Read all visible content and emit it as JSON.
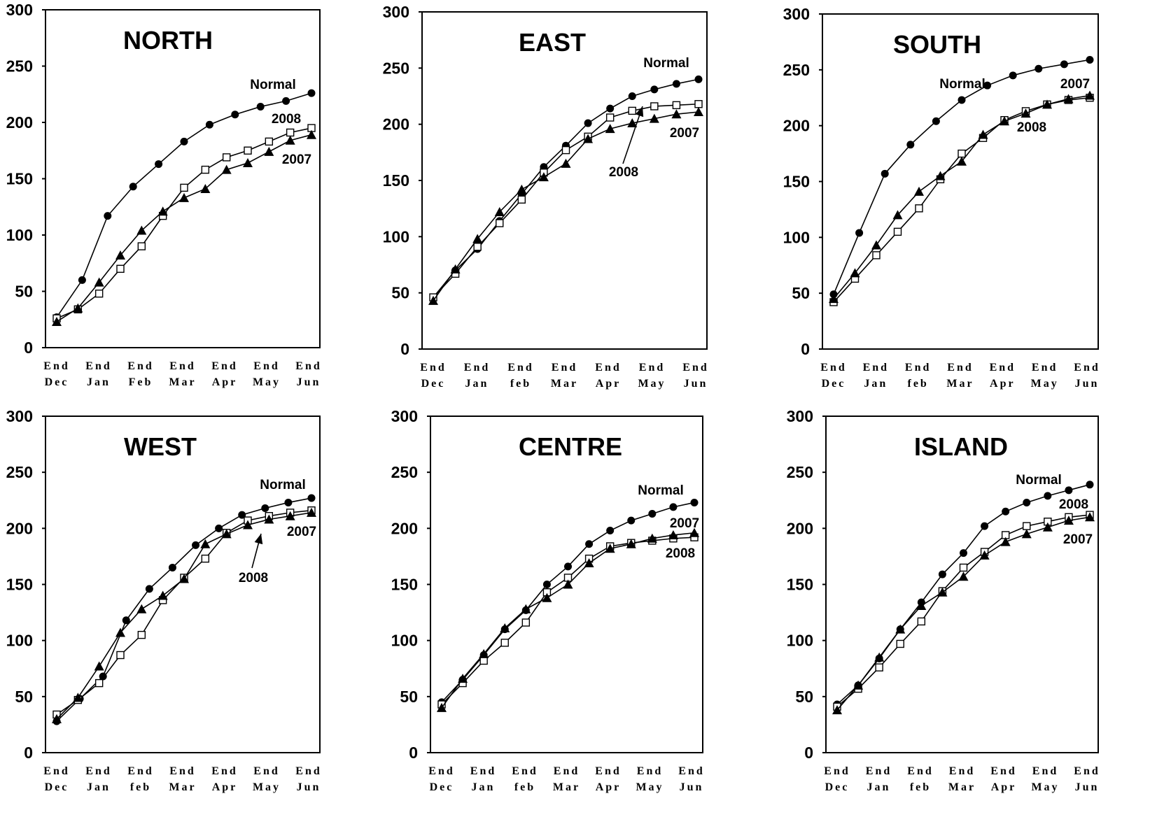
{
  "chart_data": [
    {
      "type": "line",
      "title": "NORTH",
      "x_labels": [
        [
          "End",
          "Dec"
        ],
        [
          "End",
          "Jan"
        ],
        [
          "End",
          "Feb"
        ],
        [
          "End",
          "Mar"
        ],
        [
          "End",
          "Apr"
        ],
        [
          "End",
          "May"
        ],
        [
          "End",
          "Jun"
        ]
      ],
      "ylim": [
        0,
        300
      ],
      "yticks": [
        0,
        50,
        100,
        150,
        200,
        250,
        300
      ],
      "series": [
        {
          "name": "Normal",
          "marker": "circle",
          "values": [
            27,
            60,
            117,
            143,
            163,
            183,
            198,
            207,
            214,
            219,
            226
          ]
        },
        {
          "name": "2008",
          "marker": "square",
          "values": [
            26,
            34,
            48,
            70,
            90,
            117,
            142,
            158,
            169,
            175,
            183,
            191,
            195
          ]
        },
        {
          "name": "2007",
          "marker": "triangle",
          "values": [
            23,
            35,
            58,
            82,
            104,
            121,
            133,
            141,
            158,
            164,
            174,
            184,
            189
          ]
        }
      ],
      "annotations": [
        {
          "text": "Normal",
          "arrow": false
        },
        {
          "text": "2008",
          "arrow": false
        },
        {
          "text": "2007",
          "arrow": false
        }
      ]
    },
    {
      "type": "line",
      "title": "EAST",
      "x_labels": [
        [
          "End",
          "Dec"
        ],
        [
          "End",
          "Jan"
        ],
        [
          "End",
          "feb"
        ],
        [
          "End",
          "Mar"
        ],
        [
          "End",
          "Apr"
        ],
        [
          "End",
          "May"
        ],
        [
          "End",
          "Jun"
        ]
      ],
      "ylim": [
        0,
        300
      ],
      "yticks": [
        0,
        50,
        100,
        150,
        200,
        250,
        300
      ],
      "series": [
        {
          "name": "Normal",
          "marker": "circle",
          "values": [
            46,
            70,
            89,
            114,
            138,
            162,
            181,
            201,
            214,
            225,
            231,
            236,
            240
          ]
        },
        {
          "name": "2008",
          "marker": "square",
          "values": [
            46,
            67,
            91,
            112,
            133,
            157,
            177,
            189,
            206,
            212,
            216,
            217,
            218
          ]
        },
        {
          "name": "2007",
          "marker": "triangle",
          "values": [
            43,
            71,
            98,
            122,
            142,
            153,
            165,
            187,
            196,
            201,
            205,
            209,
            211
          ]
        }
      ],
      "annotations": [
        {
          "text": "Normal",
          "arrow": false
        },
        {
          "text": "2007",
          "arrow": false
        },
        {
          "text": "2008",
          "arrow": true
        }
      ]
    },
    {
      "type": "line",
      "title": "SOUTH",
      "x_labels": [
        [
          "End",
          "Dec"
        ],
        [
          "End",
          "Jan"
        ],
        [
          "End",
          "feb"
        ],
        [
          "End",
          "Mar"
        ],
        [
          "End",
          "Apr"
        ],
        [
          "End",
          "May"
        ],
        [
          "End",
          "Jun"
        ]
      ],
      "ylim": [
        0,
        300
      ],
      "yticks": [
        0,
        50,
        100,
        150,
        200,
        250,
        300
      ],
      "series": [
        {
          "name": "Normal",
          "marker": "circle",
          "values": [
            49,
            104,
            157,
            183,
            204,
            223,
            236,
            245,
            251,
            255,
            259
          ]
        },
        {
          "name": "2008",
          "marker": "square",
          "values": [
            42,
            63,
            84,
            105,
            126,
            152,
            175,
            189,
            205,
            213,
            219,
            223,
            225
          ]
        },
        {
          "name": "2007",
          "marker": "triangle",
          "values": [
            45,
            68,
            93,
            120,
            141,
            155,
            168,
            192,
            204,
            211,
            219,
            224,
            227
          ]
        }
      ],
      "annotations": [
        {
          "text": "Normal",
          "arrow": false
        },
        {
          "text": "2007",
          "arrow": false
        },
        {
          "text": "2008",
          "arrow": false
        }
      ]
    },
    {
      "type": "line",
      "title": "WEST",
      "x_labels": [
        [
          "End",
          "Dec"
        ],
        [
          "End",
          "Jan"
        ],
        [
          "End",
          "feb"
        ],
        [
          "End",
          "Mar"
        ],
        [
          "End",
          "Apr"
        ],
        [
          "End",
          "May"
        ],
        [
          "End",
          "Jun"
        ]
      ],
      "ylim": [
        0,
        300
      ],
      "yticks": [
        0,
        50,
        100,
        150,
        200,
        250,
        300
      ],
      "series": [
        {
          "name": "Normal",
          "marker": "circle",
          "values": [
            28,
            48,
            68,
            118,
            146,
            165,
            185,
            200,
            212,
            218,
            223,
            227
          ]
        },
        {
          "name": "2008",
          "marker": "square",
          "values": [
            34,
            47,
            62,
            87,
            105,
            136,
            156,
            173,
            196,
            207,
            211,
            214,
            216
          ]
        },
        {
          "name": "2007",
          "marker": "triangle",
          "values": [
            30,
            49,
            77,
            107,
            128,
            140,
            155,
            186,
            195,
            203,
            208,
            211,
            214
          ]
        }
      ],
      "annotations": [
        {
          "text": "Normal",
          "arrow": false
        },
        {
          "text": "2007",
          "arrow": false
        },
        {
          "text": "2008",
          "arrow": true
        }
      ]
    },
    {
      "type": "line",
      "title": "CENTRE",
      "x_labels": [
        [
          "End",
          "Dec"
        ],
        [
          "End",
          "Jan"
        ],
        [
          "End",
          "feb"
        ],
        [
          "End",
          "Mar"
        ],
        [
          "End",
          "Apr"
        ],
        [
          "End",
          "May"
        ],
        [
          "End",
          "Jun"
        ]
      ],
      "ylim": [
        0,
        300
      ],
      "yticks": [
        0,
        50,
        100,
        150,
        200,
        250,
        300
      ],
      "series": [
        {
          "name": "Normal",
          "marker": "circle",
          "values": [
            45,
            65,
            87,
            110,
            127,
            150,
            166,
            186,
            198,
            207,
            213,
            219,
            223
          ]
        },
        {
          "name": "2008",
          "marker": "square",
          "values": [
            43,
            62,
            82,
            98,
            116,
            143,
            156,
            173,
            184,
            187,
            189,
            191,
            192
          ]
        },
        {
          "name": "2007",
          "marker": "triangle",
          "values": [
            40,
            66,
            88,
            111,
            128,
            138,
            150,
            169,
            182,
            186,
            191,
            194,
            196
          ]
        }
      ],
      "annotations": [
        {
          "text": "Normal",
          "arrow": false
        },
        {
          "text": "2007",
          "arrow": false
        },
        {
          "text": "2008",
          "arrow": false
        }
      ]
    },
    {
      "type": "line",
      "title": "ISLAND",
      "x_labels": [
        [
          "End",
          "Dec"
        ],
        [
          "End",
          "Jan"
        ],
        [
          "End",
          "feb"
        ],
        [
          "End",
          "Mar"
        ],
        [
          "End",
          "Apr"
        ],
        [
          "End",
          "May"
        ],
        [
          "End",
          "Jun"
        ]
      ],
      "ylim": [
        0,
        300
      ],
      "yticks": [
        0,
        50,
        100,
        150,
        200,
        250,
        300
      ],
      "series": [
        {
          "name": "Normal",
          "marker": "circle",
          "values": [
            43,
            60,
            84,
            110,
            134,
            159,
            178,
            202,
            215,
            223,
            229,
            234,
            239
          ]
        },
        {
          "name": "2008",
          "marker": "square",
          "values": [
            41,
            57,
            76,
            97,
            117,
            144,
            165,
            179,
            194,
            202,
            206,
            210,
            212
          ]
        },
        {
          "name": "2007",
          "marker": "triangle",
          "values": [
            38,
            60,
            85,
            110,
            131,
            143,
            157,
            176,
            188,
            195,
            201,
            207,
            210
          ]
        }
      ],
      "annotations": [
        {
          "text": "Normal",
          "arrow": false
        },
        {
          "text": "2008",
          "arrow": false
        },
        {
          "text": "2007",
          "arrow": false
        }
      ]
    }
  ]
}
